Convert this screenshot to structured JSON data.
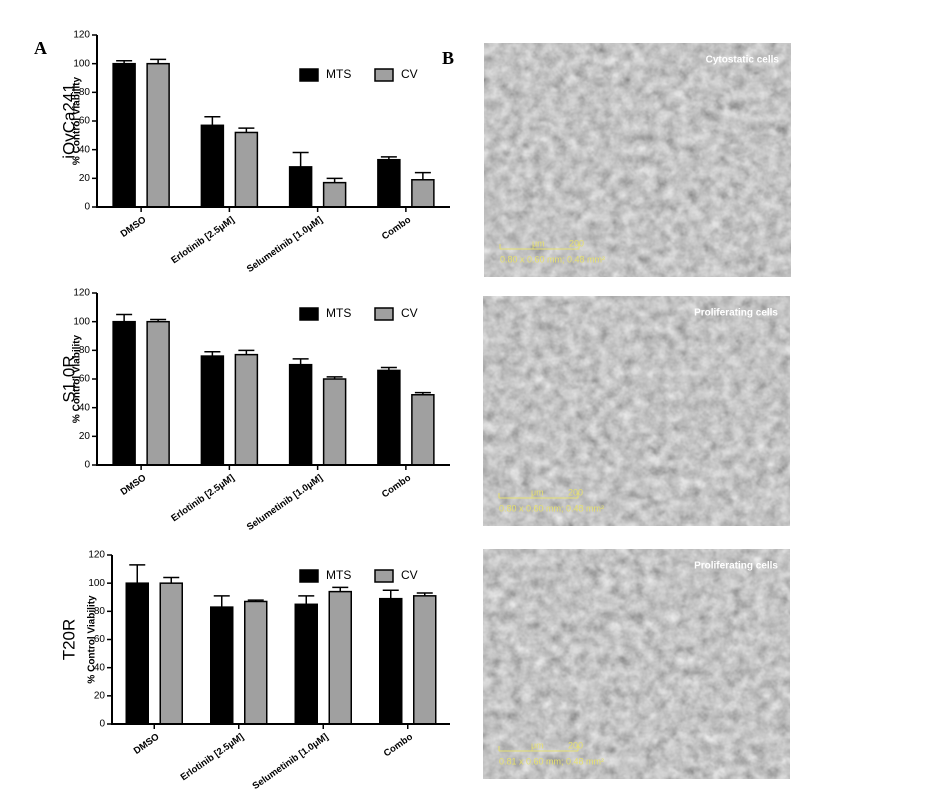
{
  "panel_labels": [
    "A",
    "B"
  ],
  "chart_data": [
    {
      "type": "bar",
      "cell_line": "iOvCa241",
      "y_label": "% Control Viability",
      "categories": [
        "DMSO",
        "Erlotinib [2.5μM]",
        "Selumetinib [1.0μM]",
        "Combo"
      ],
      "series": [
        {
          "name": "MTS",
          "color": "#000000",
          "values": [
            100,
            57,
            28,
            33
          ],
          "errors": [
            2,
            6,
            10,
            2
          ]
        },
        {
          "name": "CV",
          "color": "#a0a0a0",
          "values": [
            100,
            52,
            17,
            19
          ],
          "errors": [
            3,
            3,
            3,
            5
          ]
        }
      ],
      "ylim": [
        0,
        120
      ],
      "yticks": [
        0,
        20,
        40,
        60,
        80,
        100,
        120
      ],
      "legend": "upper right"
    },
    {
      "type": "bar",
      "cell_line": "S1.0R",
      "y_label": "% Control Viability",
      "categories": [
        "DMSO",
        "Erlotinib [2.5μM]",
        "Selumetinib [1.0μM]",
        "Combo"
      ],
      "series": [
        {
          "name": "MTS",
          "color": "#000000",
          "values": [
            100,
            76,
            70,
            66
          ],
          "errors": [
            5,
            3,
            4,
            2
          ]
        },
        {
          "name": "CV",
          "color": "#a0a0a0",
          "values": [
            100,
            77,
            60,
            49
          ],
          "errors": [
            1.5,
            3,
            1.5,
            1.5
          ]
        }
      ],
      "ylim": [
        0,
        120
      ],
      "yticks": [
        0,
        20,
        40,
        60,
        80,
        100,
        120
      ],
      "legend": "upper right"
    },
    {
      "type": "bar",
      "cell_line": "T20R",
      "y_label": "% Control Viability",
      "categories": [
        "DMSO",
        "Erlotinib [2.5μM]",
        "Selumetinib [1.0μM]",
        "Combo"
      ],
      "series": [
        {
          "name": "MTS",
          "color": "#000000",
          "values": [
            100,
            83,
            85,
            89
          ],
          "errors": [
            13,
            8,
            6,
            6
          ]
        },
        {
          "name": "CV",
          "color": "#a0a0a0",
          "values": [
            100,
            87,
            94,
            91
          ],
          "errors": [
            4,
            1,
            3,
            2
          ]
        }
      ],
      "ylim": [
        0,
        120
      ],
      "yticks": [
        0,
        20,
        40,
        60,
        80,
        100,
        120
      ],
      "legend": "upper right"
    }
  ],
  "images": [
    {
      "caption": "Cytostatic cells",
      "scale_unit": "μm",
      "scale_value": 200,
      "dimensions": "0.80 x 0.60 mm; 0.48 mm²"
    },
    {
      "caption": "Proliferating cells",
      "scale_unit": "μm",
      "scale_value": 200,
      "dimensions": "0.80 x 0.60 mm; 0.48 mm²"
    },
    {
      "caption": "Proliferating cells",
      "scale_unit": "μm",
      "scale_value": 200,
      "dimensions": "0.81 x 0.60 mm; 0.48 mm²"
    }
  ]
}
